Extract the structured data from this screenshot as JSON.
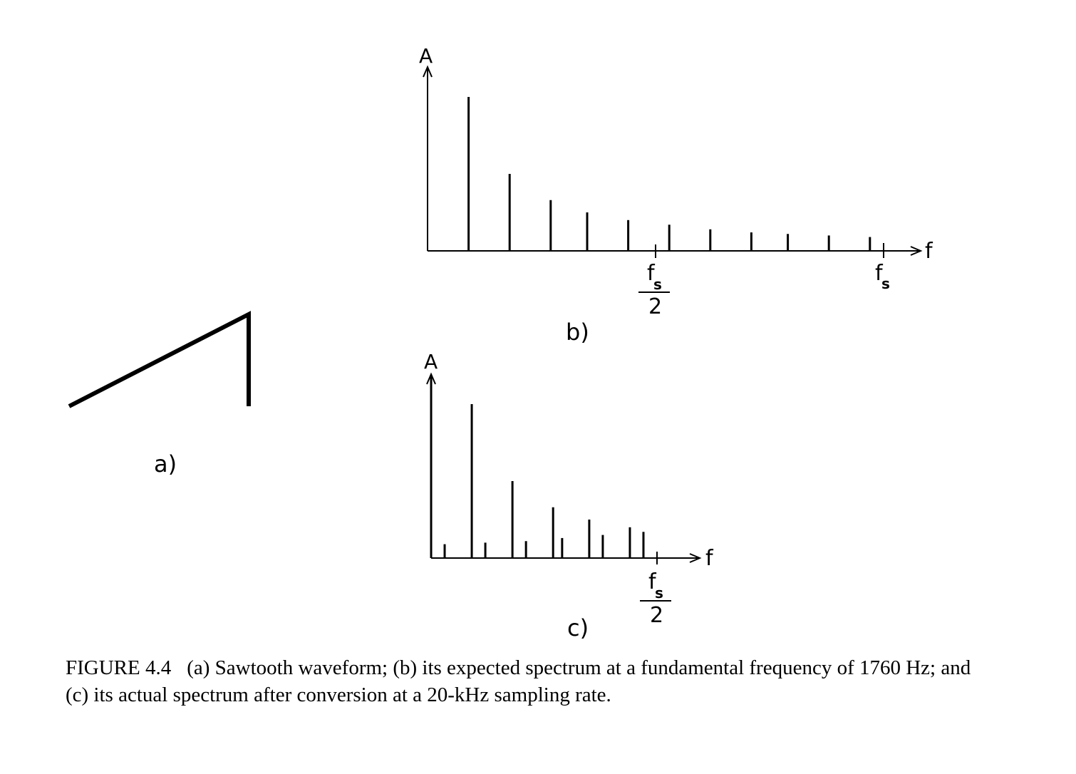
{
  "panel_a": {
    "label": "a)"
  },
  "chart_data": [
    {
      "type": "bar",
      "panel_label": "b)",
      "ylabel": "A",
      "xlabel": "f",
      "tick_labels": {
        "half_fs": {
          "numerator": "f",
          "subscript": "s",
          "denominator": "2"
        },
        "fs": {
          "main": "f",
          "subscript": "s"
        }
      },
      "x_fs_units": {
        "half_fs": 0.5,
        "fs": 1.0
      },
      "xlim": [
        0,
        1.05
      ],
      "ylim": [
        0,
        1.0
      ],
      "values_fs_units": [
        0.09,
        0.18,
        0.27,
        0.35,
        0.44,
        0.53,
        0.62,
        0.71,
        0.79,
        0.88,
        0.97
      ],
      "amplitudes": [
        1.0,
        0.5,
        0.33,
        0.25,
        0.2,
        0.17,
        0.14,
        0.12,
        0.11,
        0.1,
        0.09
      ]
    },
    {
      "type": "bar",
      "panel_label": "c)",
      "ylabel": "A",
      "xlabel": "f",
      "tick_labels": {
        "half_fs": {
          "numerator": "f",
          "subscript": "s",
          "denominator": "2"
        }
      },
      "x_fs_units": {
        "half_fs": 0.5
      },
      "xlim": [
        0,
        0.6
      ],
      "ylim": [
        0,
        1.0
      ],
      "values_fs_units": [
        0.03,
        0.09,
        0.12,
        0.18,
        0.21,
        0.27,
        0.29,
        0.35,
        0.38,
        0.44,
        0.47
      ],
      "amplitudes": [
        0.09,
        1.0,
        0.1,
        0.5,
        0.11,
        0.33,
        0.13,
        0.25,
        0.15,
        0.2,
        0.17
      ]
    }
  ],
  "caption": {
    "figure_number": "FIGURE 4.4",
    "text": "(a) Sawtooth waveform; (b) its expected spectrum at a fundamental frequency of 1760 Hz; and (c) its actual spectrum after conversion at a 20-kHz sampling rate."
  }
}
